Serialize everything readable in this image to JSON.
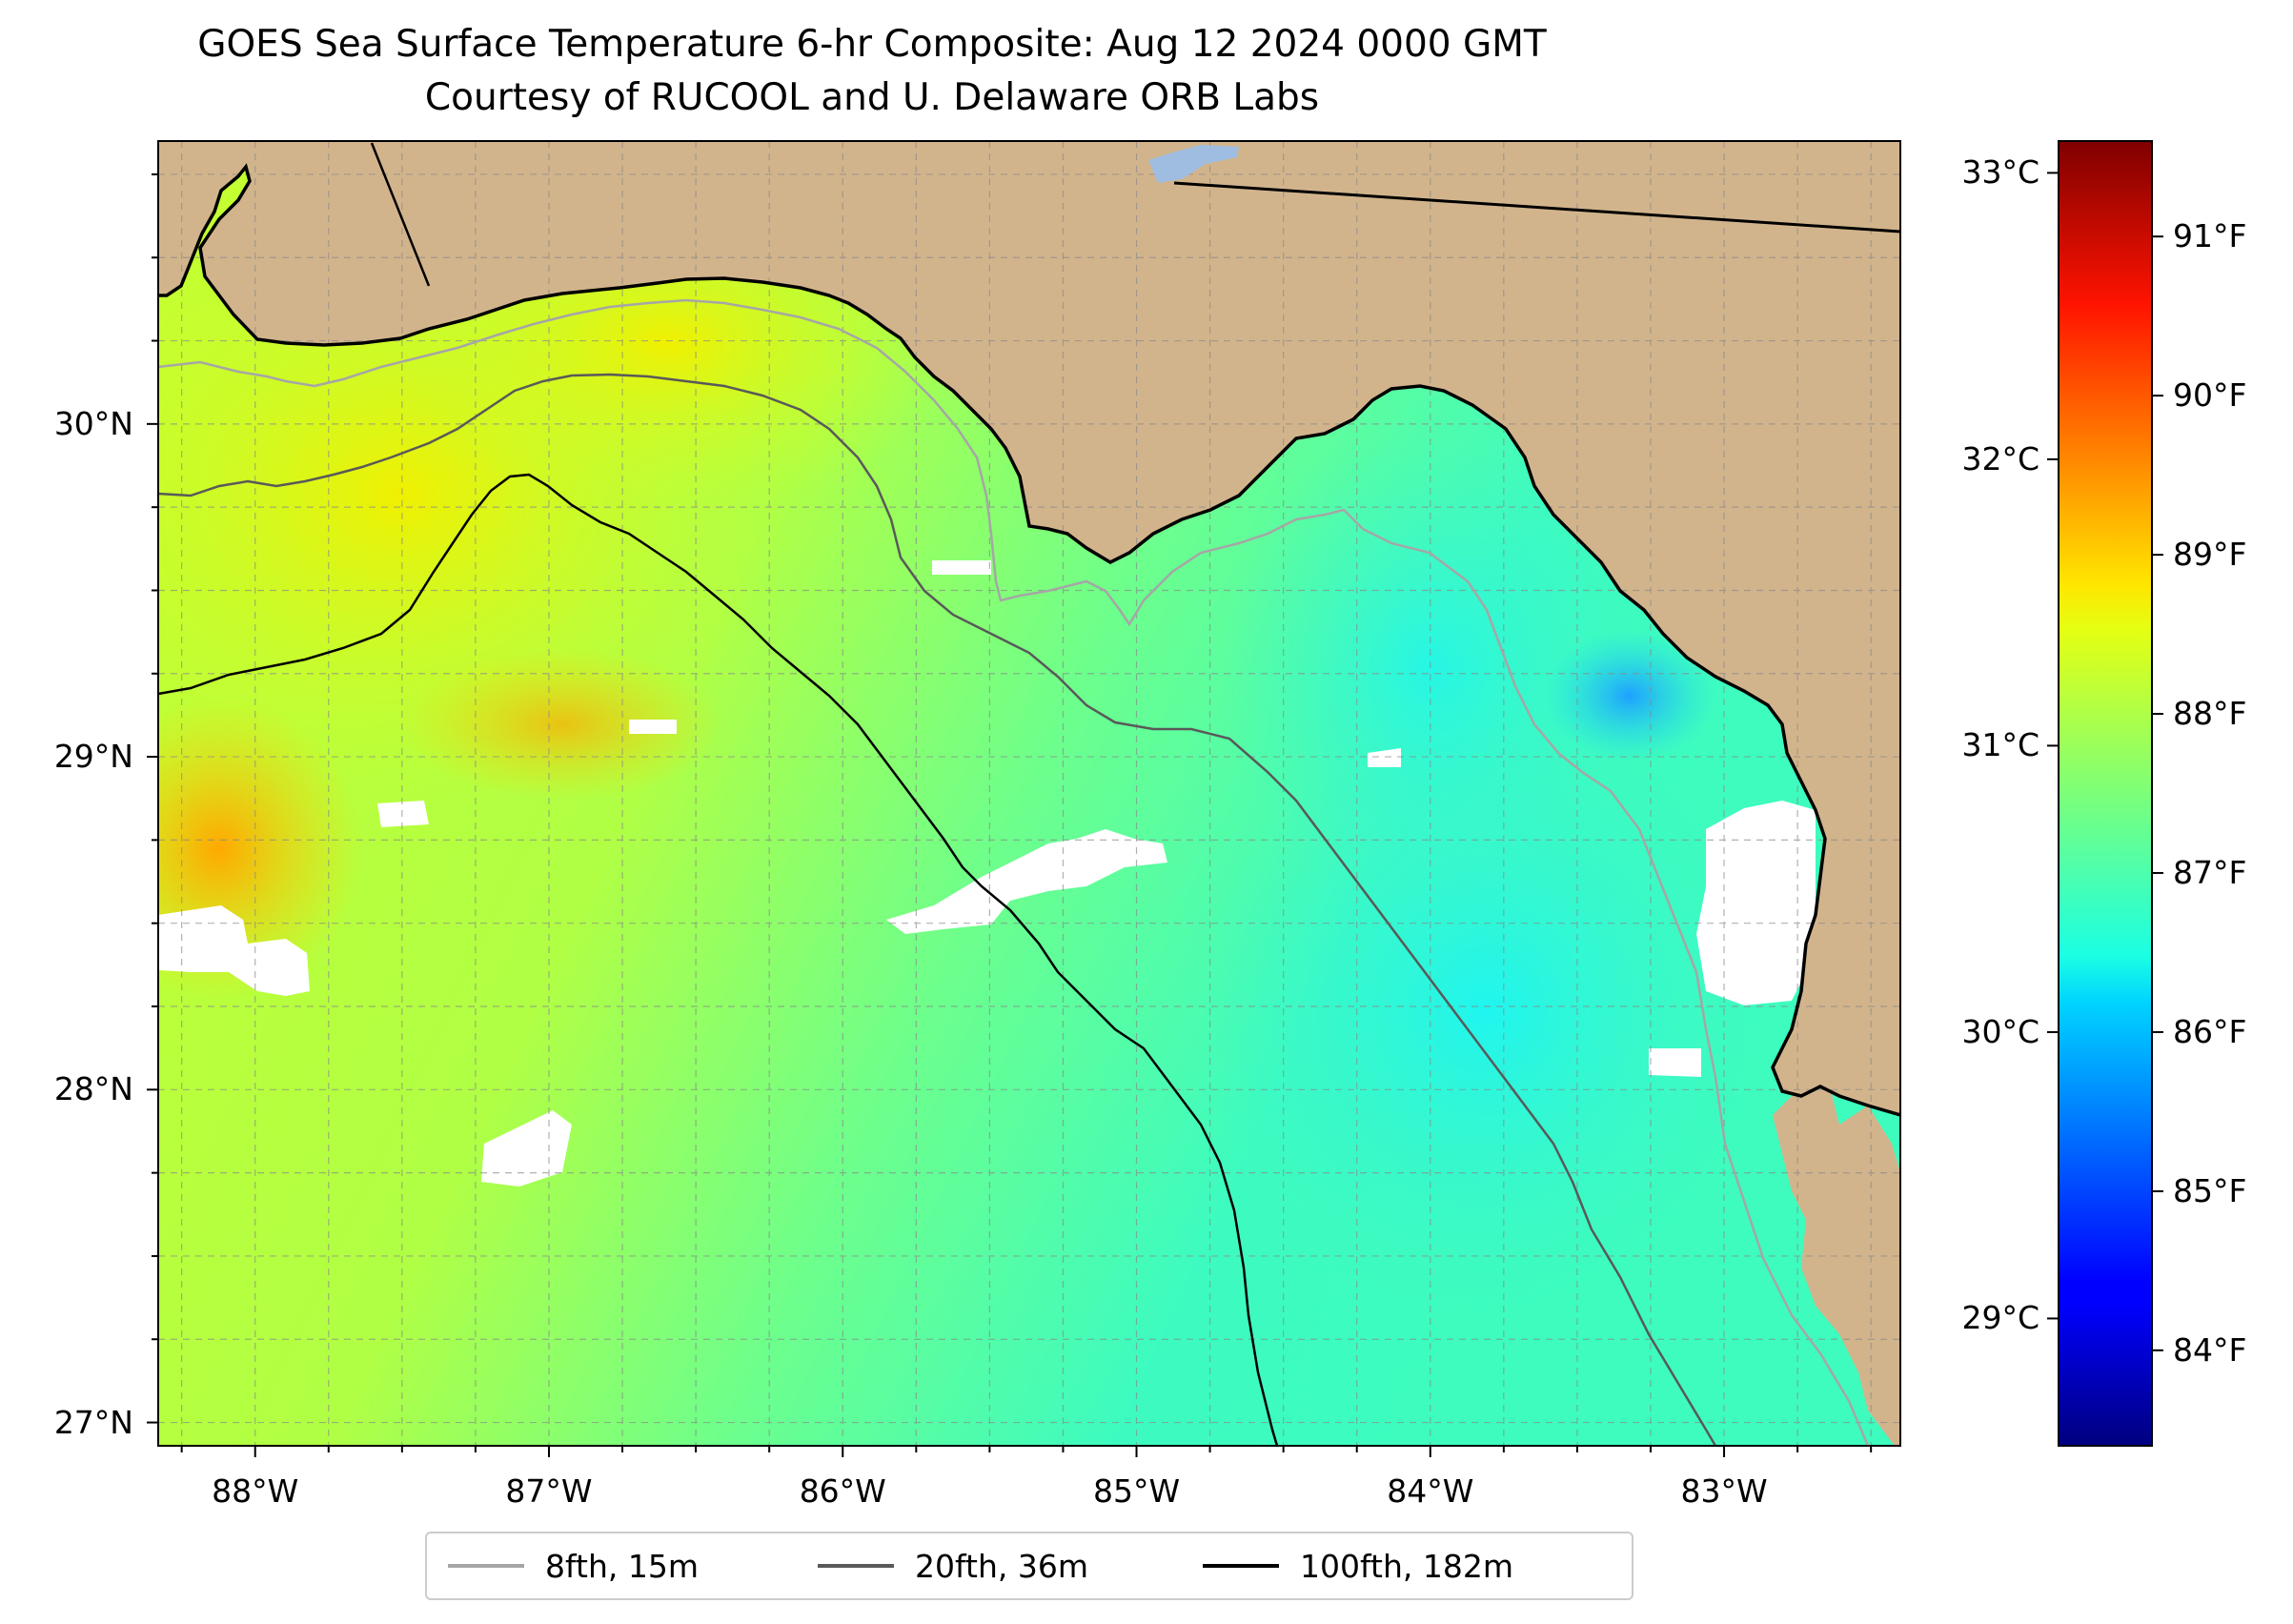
{
  "title": "GOES Sea Surface Temperature 6-hr Composite: Aug 12 2024 0000 GMT",
  "subtitle": "Courtesy of RUCOOL and U. Delaware ORB Labs",
  "map": {
    "lon_range": [
      -88.33,
      -82.4
    ],
    "lat_range": [
      26.93,
      30.85
    ],
    "grid": true,
    "land_color": "#d2b48c",
    "lat_labels": [
      {
        "value": 30,
        "text": "30°N"
      },
      {
        "value": 29,
        "text": "29°N"
      },
      {
        "value": 28,
        "text": "28°N"
      },
      {
        "value": 27,
        "text": "27°N"
      }
    ],
    "lon_labels": [
      {
        "value": -88,
        "text": "88°W"
      },
      {
        "value": -87,
        "text": "87°W"
      },
      {
        "value": -86,
        "text": "86°W"
      },
      {
        "value": -85,
        "text": "85°W"
      },
      {
        "value": -84,
        "text": "84°W"
      },
      {
        "value": -83,
        "text": "83°W"
      }
    ]
  },
  "colorbar": {
    "colormap": "jet",
    "celsius_labels": [
      {
        "value": 33,
        "text": "33°C"
      },
      {
        "value": 32,
        "text": "32°C"
      },
      {
        "value": 31,
        "text": "31°C"
      },
      {
        "value": 30,
        "text": "30°C"
      },
      {
        "value": 29,
        "text": "29°C"
      }
    ],
    "fahrenheit_labels": [
      {
        "value": 91,
        "text": "91°F"
      },
      {
        "value": 90,
        "text": "90°F"
      },
      {
        "value": 89,
        "text": "89°F"
      },
      {
        "value": 88,
        "text": "88°F"
      },
      {
        "value": 87,
        "text": "87°F"
      },
      {
        "value": 86,
        "text": "86°F"
      },
      {
        "value": 85,
        "text": "85°F"
      },
      {
        "value": 84,
        "text": "84°F"
      }
    ],
    "range_f": [
      83.4,
      91.6
    ]
  },
  "legend": {
    "items": [
      {
        "label": "8fth, 15m",
        "color": "#a6a6a6"
      },
      {
        "label": "20fth, 36m",
        "color": "#595959"
      },
      {
        "label": "100fth, 182m",
        "color": "#000000"
      }
    ]
  }
}
